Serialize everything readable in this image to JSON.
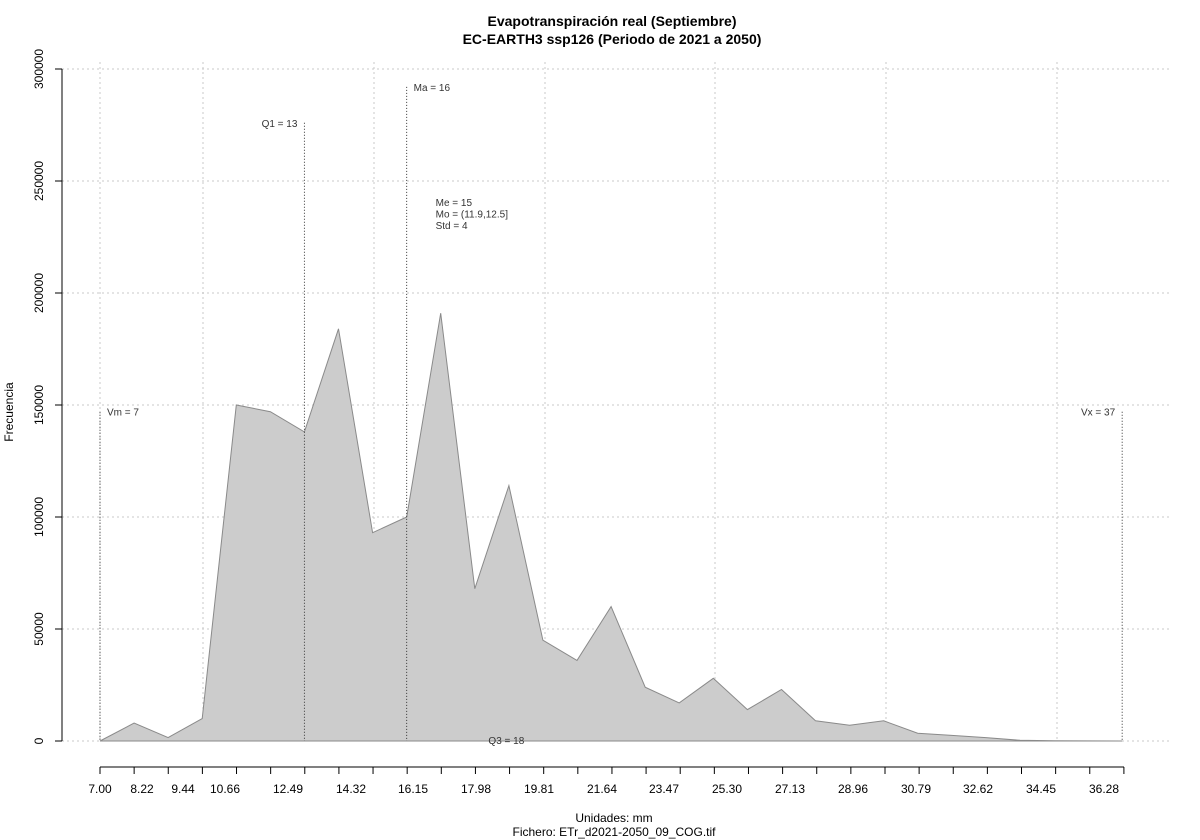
{
  "chart_data": {
    "type": "area",
    "title": "Evapotranspiración real (Septiembre)",
    "subtitle": "EC-EARTH3 ssp126 (Periodo de 2021 a 2050)",
    "xlabel": "Unidades: mm",
    "xlabel2": "Fichero: ETr_d2021-2050_09_COG.tif",
    "ylabel": "Frecuencia",
    "xlim": [
      7.0,
      37.2
    ],
    "ylim": [
      0,
      300000
    ],
    "grid": true,
    "x_tick_labels": [
      "7.00",
      "8.22",
      "9.44",
      "10.66",
      "12.49",
      "14.32",
      "16.15",
      "17.98",
      "19.81",
      "21.64",
      "23.47",
      "25.30",
      "27.13",
      "28.96",
      "30.79",
      "32.62",
      "34.45",
      "36.28"
    ],
    "y_ticks": [
      0,
      50000,
      100000,
      150000,
      200000,
      250000,
      300000
    ],
    "y_tick_labels": [
      "0",
      "50000",
      "100000",
      "150000",
      "200000",
      "250000",
      "300000"
    ],
    "fill_color": "#cccccc",
    "stroke_color": "#8a8a8a",
    "series": [
      {
        "x": [
          7.0,
          8.0,
          9.0,
          10.0,
          11.0,
          12.0,
          13.0,
          14.0,
          15.0,
          16.0,
          17.0,
          18.0,
          19.0,
          20.0,
          21.0,
          22.0,
          23.0,
          24.0,
          25.0,
          26.0,
          27.0,
          28.0,
          29.0,
          30.0,
          31.0,
          32.0,
          33.0,
          34.0,
          35.0,
          36.0,
          37.0
        ],
        "values": [
          0,
          8000,
          1500,
          10000,
          150000,
          147000,
          138000,
          184000,
          93000,
          100000,
          191000,
          68000,
          114000,
          45000,
          36000,
          60000,
          24000,
          17000,
          28000,
          14000,
          23000,
          9000,
          7000,
          9000,
          3500,
          2500,
          1500,
          300,
          100,
          50,
          0
        ]
      }
    ],
    "reference_lines": [
      {
        "label": "Vm = 7",
        "x": 7.0,
        "y_top": 147000,
        "label_side": "right"
      },
      {
        "label": "Q1 = 13",
        "x": 13.0,
        "y_top": 276000,
        "label_side": "left"
      },
      {
        "label": "Ma = 16",
        "x": 16.0,
        "y_top": 292000,
        "label_side": "right"
      },
      {
        "label": "Vx = 37",
        "x": 37.0,
        "y_top": 147000,
        "label_side": "left"
      }
    ],
    "annotations": [
      {
        "label": "Me = 15",
        "x": 16.85,
        "y": 241000
      },
      {
        "label": "Mo = (11.9,12.5]",
        "x": 16.85,
        "y": 236000
      },
      {
        "label": "Std = 4",
        "x": 16.85,
        "y": 231000
      },
      {
        "label": "Q3 = 18",
        "x": 18.4,
        "y": 0
      }
    ]
  }
}
